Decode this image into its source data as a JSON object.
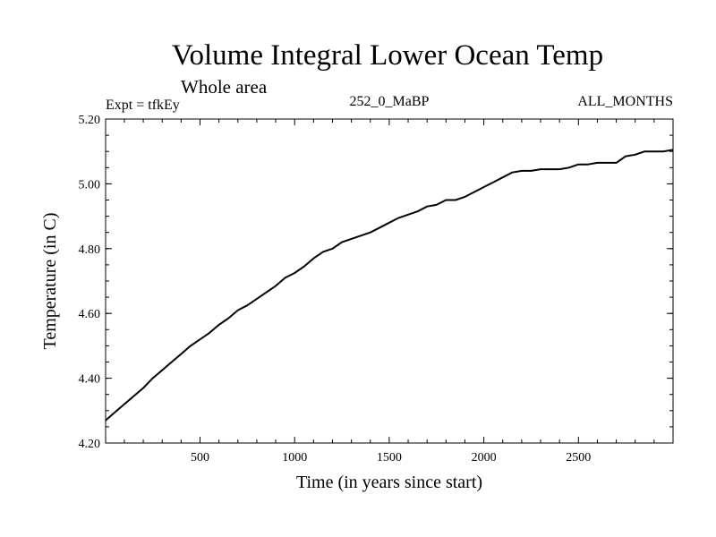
{
  "chart_data": {
    "type": "line",
    "title": "Volume Integral Lower Ocean Temp",
    "subtitle": "Whole area",
    "experiment": "Expt = tfkEy",
    "period": "252_0_MaBP",
    "season": "ALL_MONTHS",
    "xlabel": "Time (in years since start)",
    "ylabel": "Temperature (in C)",
    "xlim": [
      1,
      3000
    ],
    "ylim": [
      4.2,
      5.2
    ],
    "x_ticks": [
      "500",
      "1000",
      "1500",
      "2000",
      "2500"
    ],
    "y_ticks": [
      "4.20",
      "4.40",
      "4.60",
      "4.80",
      "5.00",
      "5.20"
    ],
    "grid": false,
    "series": [
      {
        "color": "#000000",
        "x": [
          1,
          50,
          100,
          150,
          200,
          250,
          300,
          350,
          400,
          450,
          500,
          550,
          600,
          650,
          700,
          750,
          800,
          850,
          900,
          950,
          1000,
          1050,
          1100,
          1150,
          1200,
          1250,
          1300,
          1350,
          1400,
          1450,
          1500,
          1550,
          1600,
          1650,
          1700,
          1750,
          1800,
          1850,
          1900,
          1950,
          2000,
          2050,
          2100,
          2150,
          2200,
          2250,
          2300,
          2350,
          2400,
          2450,
          2500,
          2550,
          2600,
          2650,
          2700,
          2750,
          2800,
          2850,
          2900,
          2950,
          3000
        ],
        "y": [
          4.27,
          4.295,
          4.32,
          4.345,
          4.37,
          4.4,
          4.425,
          4.45,
          4.475,
          4.5,
          4.52,
          4.54,
          4.565,
          4.585,
          4.61,
          4.625,
          4.645,
          4.665,
          4.685,
          4.71,
          4.725,
          4.745,
          4.77,
          4.79,
          4.8,
          4.82,
          4.83,
          4.84,
          4.85,
          4.865,
          4.88,
          4.895,
          4.905,
          4.915,
          4.93,
          4.935,
          4.95,
          4.95,
          4.96,
          4.975,
          4.99,
          5.005,
          5.02,
          5.035,
          5.04,
          5.04,
          5.045,
          5.045,
          5.045,
          5.05,
          5.06,
          5.06,
          5.065,
          5.065,
          5.065,
          5.085,
          5.09,
          5.1,
          5.1,
          5.1,
          5.105
        ]
      }
    ]
  }
}
